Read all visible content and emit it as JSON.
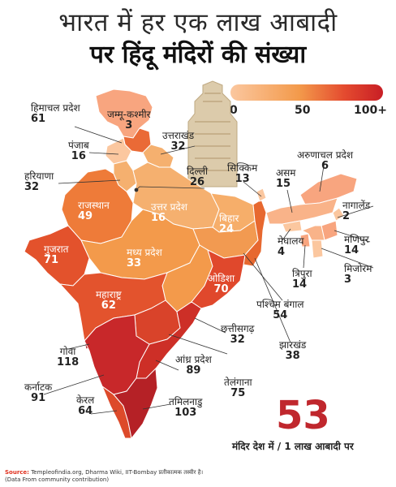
{
  "title_line1": "भारत में हर एक लाख आबादी",
  "title_line2": "पर हिंदू मंदिरों की संख्या",
  "legend": {
    "min": "0",
    "mid": "50",
    "max": "100+"
  },
  "states": {
    "himachal": {
      "name": "हिमाचल प्रदेश",
      "value": "61"
    },
    "jk": {
      "name": "जम्मू-कश्मीर",
      "value": "3"
    },
    "uttarakhand": {
      "name": "उत्तराखंड",
      "value": "32"
    },
    "punjab": {
      "name": "पंजाब",
      "value": "16"
    },
    "haryana": {
      "name": "हरियाणा",
      "value": "32"
    },
    "delhi": {
      "name": "दिल्ली",
      "value": "26"
    },
    "sikkim": {
      "name": "सिक्किम",
      "value": "13"
    },
    "arunachal": {
      "name": "अरुणाचल प्रदेश",
      "value": "6"
    },
    "assam": {
      "name": "असम",
      "value": "15"
    },
    "nagaland": {
      "name": "नागालेंड",
      "value": "2"
    },
    "rajasthan": {
      "name": "राजस्थान",
      "value": "49"
    },
    "up": {
      "name": "उत्तर प्रदेश",
      "value": "16"
    },
    "bihar": {
      "name": "बिहार",
      "value": "24"
    },
    "meghalaya": {
      "name": "मेघालय",
      "value": "4"
    },
    "manipur": {
      "name": "मणिपुर",
      "value": "14"
    },
    "gujarat": {
      "name": "गुजरात",
      "value": "71"
    },
    "mp": {
      "name": "मध्य प्रदेश",
      "value": "33"
    },
    "tripura": {
      "name": "त्रिपुरा",
      "value": "14"
    },
    "mizoram": {
      "name": "मिजोरम",
      "value": "3"
    },
    "odisha": {
      "name": "ओडिशा",
      "value": "70"
    },
    "wb": {
      "name": "पश्चिम बंगाल",
      "value": "54"
    },
    "maharashtra": {
      "name": "महाराष्ट्र",
      "value": "62"
    },
    "chhattisgarh": {
      "name": "छत्तीसगढ़",
      "value": "32"
    },
    "jharkhand": {
      "name": "झारखंड",
      "value": "38"
    },
    "goa": {
      "name": "गोवा",
      "value": "118"
    },
    "andhra": {
      "name": "आंध्र प्रदेश",
      "value": "89"
    },
    "karnataka": {
      "name": "कर्नाटक",
      "value": "91"
    },
    "telangana": {
      "name": "तेलंगाना",
      "value": "75"
    },
    "kerala": {
      "name": "केरल",
      "value": "64"
    },
    "tamilnadu": {
      "name": "तमिलनाडु",
      "value": "103"
    }
  },
  "national": {
    "value": "53",
    "caption": "मंदिर देश में / 1 लाख आबादी पर"
  },
  "source": {
    "prefix": "Source:",
    "text": "Templeofindia.org, Dharma Wiki, IIT-Bombay  प्रतीकात्मक तस्वीर है।",
    "note": "(Data From community contribution)"
  },
  "colors": {
    "low": "#fbc79f",
    "mid": "#f39a4b",
    "high": "#e55a2b",
    "vhigh": "#d7402a",
    "top": "#c0272d"
  }
}
